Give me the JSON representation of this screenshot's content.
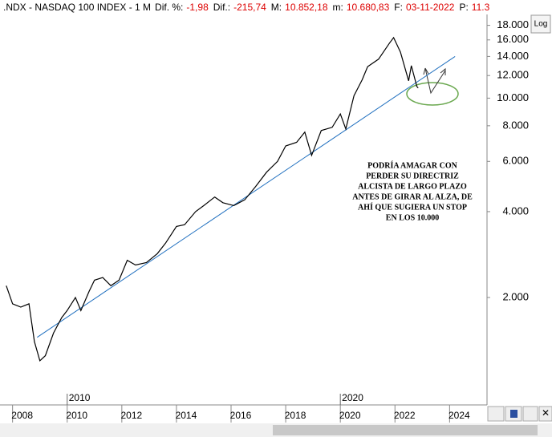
{
  "chart_data": {
    "type": "line",
    "title": ".NDX - NASDAQ 100 INDEX -  1 M",
    "header": [
      {
        "label": "Dif. %:",
        "value": "-1,98"
      },
      {
        "label": "Dif.:",
        "value": "-215,74"
      },
      {
        "label": "M:",
        "value": "10.852,18"
      },
      {
        "label": "m:",
        "value": "10.680,83"
      },
      {
        "label": "F:",
        "value": "03-11-2022"
      },
      {
        "label": "P:",
        "value": "11.3"
      }
    ],
    "annotation": [
      "PODRÍA AMAGAR CON",
      "PERDER SU DIRECTRIZ",
      "ALCISTA DE LARGO PLAZO",
      "ANTES DE GIRAR AL ALZA, DE",
      "AHÍ QUE SUGIERA UN STOP",
      "EN LOS 10.000"
    ],
    "log_y": true,
    "series": [
      {
        "name": "NDX",
        "color": "#000000",
        "x": [
          2007.77,
          2008.0,
          2008.3,
          2008.6,
          2008.8,
          2009.0,
          2009.2,
          2009.5,
          2009.8,
          2010.0,
          2010.3,
          2010.5,
          2010.8,
          2011.0,
          2011.3,
          2011.6,
          2011.9,
          2012.2,
          2012.5,
          2012.9,
          2013.3,
          2013.6,
          2014.0,
          2014.3,
          2014.7,
          2015.0,
          2015.4,
          2015.7,
          2016.1,
          2016.5,
          2016.9,
          2017.3,
          2017.7,
          2018.0,
          2018.4,
          2018.7,
          2018.95,
          2019.3,
          2019.7,
          2020.0,
          2020.2,
          2020.5,
          2020.8,
          2021.0,
          2021.4,
          2021.8,
          2021.95,
          2022.2,
          2022.5,
          2022.6,
          2022.8,
          2022.85
        ],
        "values": [
          2200,
          1900,
          1850,
          1900,
          1400,
          1200,
          1250,
          1500,
          1700,
          1800,
          2000,
          1800,
          2100,
          2300,
          2350,
          2200,
          2300,
          2700,
          2600,
          2650,
          2850,
          3100,
          3550,
          3600,
          4000,
          4200,
          4500,
          4300,
          4200,
          4400,
          4900,
          5500,
          6000,
          6800,
          7000,
          7600,
          6300,
          7700,
          7900,
          8800,
          7800,
          10200,
          11600,
          12900,
          13700,
          15600,
          16300,
          14500,
          11500,
          13000,
          11000,
          10850
        ]
      }
    ],
    "trendline": {
      "x": [
        2008.9,
        2024.2
      ],
      "values": [
        1450,
        14000
      ],
      "color": "#1f6fbf"
    },
    "xlim": [
      2007.54,
      2025.37
    ],
    "xticks": [
      2008,
      2010,
      2012,
      2014,
      2016,
      2018,
      2020,
      2022,
      2024
    ],
    "xmarkers": [
      2010,
      2020
    ],
    "ylim": [
      840,
      20700
    ],
    "yticks": [
      {
        "value": 2000,
        "label": "2.000"
      },
      {
        "value": 4000,
        "label": "4.000"
      },
      {
        "value": 6000,
        "label": "6.000"
      },
      {
        "value": 8000,
        "label": "8.000"
      },
      {
        "value": 10000,
        "label": "10.000"
      },
      {
        "value": 12000,
        "label": "12.000"
      },
      {
        "value": 14000,
        "label": "14.000"
      },
      {
        "value": 16000,
        "label": "16.000"
      },
      {
        "value": 18000,
        "label": "18.000"
      }
    ],
    "button": "Log"
  }
}
